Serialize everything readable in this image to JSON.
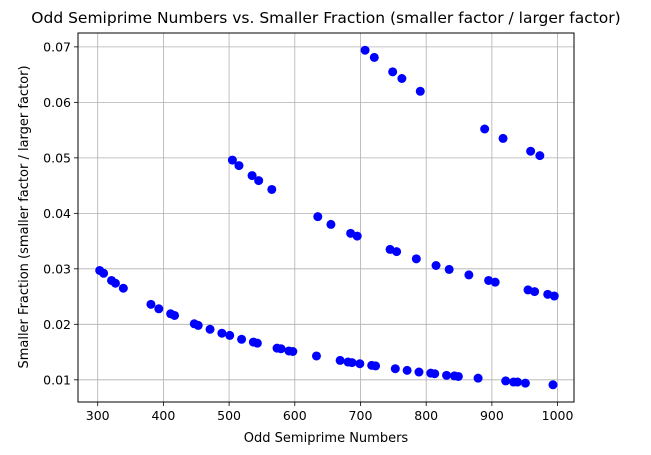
{
  "chart_data": {
    "type": "scatter",
    "title": "Odd Semiprime Numbers vs. Smaller Fraction (smaller factor / larger factor)",
    "xlabel": "Odd Semiprime Numbers",
    "ylabel": "Smaller Fraction (smaller factor / larger factor)",
    "xlim": [
      270,
      1025
    ],
    "ylim": [
      0.006,
      0.0725
    ],
    "xticks": [
      300,
      400,
      500,
      600,
      700,
      800,
      900,
      1000
    ],
    "yticks": [
      0.01,
      0.02,
      0.03,
      0.04,
      0.05,
      0.06,
      0.07
    ],
    "ytick_labels": [
      "0.01",
      "0.02",
      "0.03",
      "0.04",
      "0.05",
      "0.06",
      "0.07"
    ],
    "grid": true,
    "marker_color": "#0000ff",
    "series": [
      {
        "points": [
          [
            303,
            0.0297
          ],
          [
            309,
            0.0292
          ],
          [
            321,
            0.0279
          ],
          [
            327,
            0.0274
          ],
          [
            339,
            0.0265
          ],
          [
            381,
            0.0236
          ],
          [
            393,
            0.0228
          ],
          [
            411,
            0.0219
          ],
          [
            417,
            0.0216
          ],
          [
            447,
            0.0201
          ],
          [
            453,
            0.0198
          ],
          [
            471,
            0.0191
          ],
          [
            489,
            0.0184
          ],
          [
            501,
            0.018
          ],
          [
            519,
            0.0173
          ],
          [
            537,
            0.0168
          ],
          [
            543,
            0.0166
          ],
          [
            573,
            0.0157
          ],
          [
            579,
            0.0156
          ],
          [
            591,
            0.0152
          ],
          [
            597,
            0.0151
          ],
          [
            633,
            0.0143
          ],
          [
            669,
            0.0135
          ],
          [
            681,
            0.0132
          ],
          [
            687,
            0.0131
          ],
          [
            699,
            0.0129
          ],
          [
            717,
            0.0126
          ],
          [
            723,
            0.0125
          ],
          [
            753,
            0.012
          ],
          [
            771,
            0.0117
          ],
          [
            789,
            0.0114
          ],
          [
            807,
            0.0112
          ],
          [
            813,
            0.0111
          ],
          [
            831,
            0.0108
          ],
          [
            843,
            0.0107
          ],
          [
            849,
            0.0106
          ],
          [
            879,
            0.0103
          ],
          [
            921,
            0.0098
          ],
          [
            933,
            0.0096
          ],
          [
            939,
            0.0096
          ],
          [
            951,
            0.0094
          ],
          [
            993,
            0.0091
          ]
        ]
      },
      {
        "points": [
          [
            635,
            0.0394
          ],
          [
            655,
            0.038
          ],
          [
            685,
            0.0364
          ],
          [
            695,
            0.0359
          ],
          [
            745,
            0.0335
          ],
          [
            755,
            0.0331
          ],
          [
            785,
            0.0318
          ],
          [
            815,
            0.0306
          ],
          [
            835,
            0.0299
          ],
          [
            865,
            0.0289
          ],
          [
            895,
            0.0279
          ],
          [
            905,
            0.0276
          ],
          [
            955,
            0.0262
          ],
          [
            965,
            0.0259
          ],
          [
            985,
            0.0254
          ],
          [
            995,
            0.0251
          ]
        ]
      },
      {
        "points": [
          [
            505,
            0.0496
          ],
          [
            515,
            0.0486
          ],
          [
            535,
            0.0468
          ],
          [
            545,
            0.0459
          ],
          [
            565,
            0.0443
          ],
          [
            889,
            0.0552
          ],
          [
            917,
            0.0535
          ],
          [
            959,
            0.0512
          ],
          [
            973,
            0.0504
          ]
        ]
      },
      {
        "points": [
          [
            707,
            0.0694
          ],
          [
            721,
            0.0681
          ],
          [
            749,
            0.0655
          ],
          [
            763,
            0.0643
          ],
          [
            791,
            0.062
          ]
        ]
      }
    ]
  }
}
